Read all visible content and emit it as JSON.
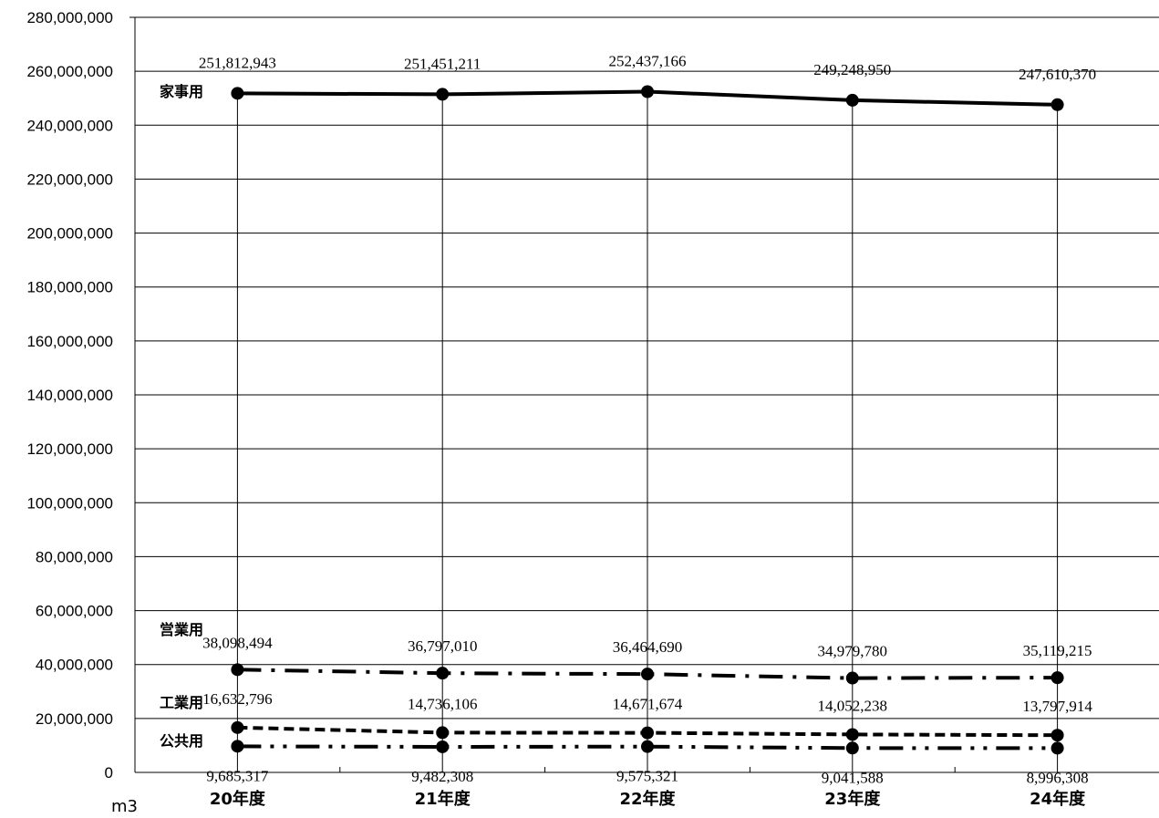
{
  "chart_data": {
    "type": "line",
    "categories": [
      "20年度",
      "21年度",
      "22年度",
      "23年度",
      "24年度"
    ],
    "ylim": [
      0,
      280000000
    ],
    "y_ticks": [
      "0",
      "20,000,000",
      "40,000,000",
      "60,000,000",
      "80,000,000",
      "100,000,000",
      "120,000,000",
      "140,000,000",
      "160,000,000",
      "180,000,000",
      "200,000,000",
      "220,000,000",
      "240,000,000",
      "260,000,000",
      "280,000,000"
    ],
    "unit_label": "m3",
    "grid": true,
    "series": [
      {
        "name": "家事用",
        "values": [
          251812943,
          251451211,
          252437166,
          249248950,
          247610370
        ],
        "labels": [
          "251,812,943",
          "251,451,211",
          "252,437,166",
          "249,248,950",
          "247,610,370"
        ],
        "style": "solid"
      },
      {
        "name": "営業用",
        "values": [
          38098494,
          36797010,
          36464690,
          34979780,
          35119215
        ],
        "labels": [
          "38,098,494",
          "36,797,010",
          "36,464,690",
          "34,979,780",
          "35,119,215"
        ],
        "style": "dash-dot"
      },
      {
        "name": "工業用",
        "values": [
          16632796,
          14736106,
          14671674,
          14052238,
          13797914
        ],
        "labels": [
          "16,632,796",
          "14,736,106",
          "14,671,674",
          "14,052,238",
          "13,797,914"
        ],
        "style": "dashed"
      },
      {
        "name": "公共用",
        "values": [
          9685317,
          9482308,
          9575321,
          9041588,
          8996308
        ],
        "labels": [
          "9,685,317",
          "9,482,308",
          "9,575,321",
          "9,041,588",
          "8,996,308"
        ],
        "style": "dash-dot-dot"
      }
    ],
    "colors": {
      "line": "#000000",
      "grid": "#000000"
    }
  }
}
